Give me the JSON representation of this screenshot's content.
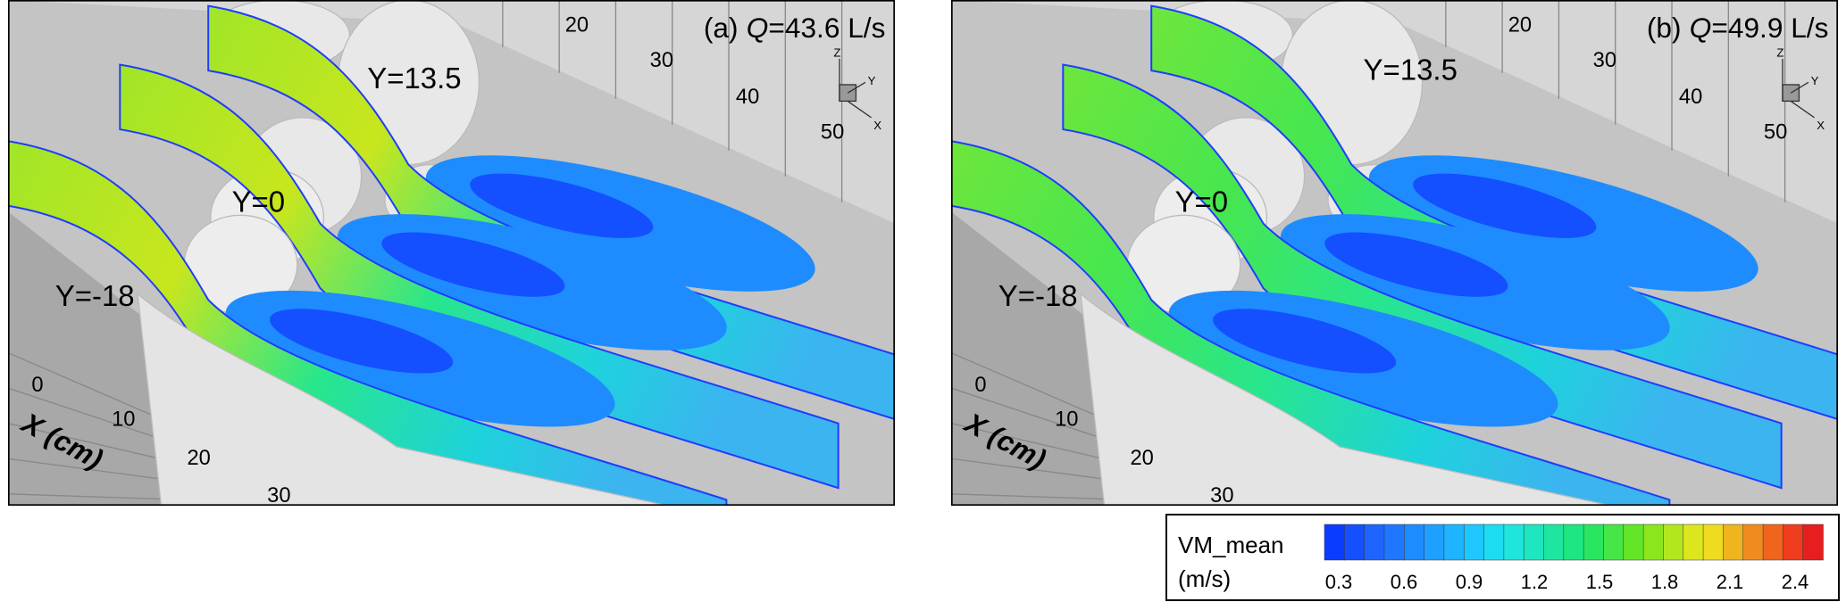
{
  "panels": [
    {
      "label": "(a)",
      "symbol": "Q",
      "value": "=43.6 L/s",
      "planes": [
        "Y=13.5",
        "Y=0",
        "Y=-18"
      ],
      "x_axis_label": "X (cm)",
      "x_ticks": [
        "0",
        "10",
        "20",
        "30"
      ],
      "back_ticks": [
        "20",
        "30",
        "40",
        "50"
      ],
      "triad": [
        "Z",
        "Y",
        "X"
      ]
    },
    {
      "label": "(b)",
      "symbol": "Q",
      "value": "=49.9 L/s",
      "planes": [
        "Y=13.5",
        "Y=0",
        "Y=-18"
      ],
      "x_axis_label": "X (cm)",
      "x_ticks": [
        "0",
        "10",
        "20",
        "30"
      ],
      "back_ticks": [
        "20",
        "30",
        "40",
        "50"
      ],
      "triad": [
        "Z",
        "Y",
        "X"
      ]
    }
  ],
  "colorbar": {
    "title": "VM_mean",
    "unit": "(m/s)",
    "ticks": [
      "0.3",
      "0.6",
      "0.9",
      "1.2",
      "1.5",
      "1.8",
      "2.1",
      "2.4"
    ],
    "colors": [
      "#0a3cff",
      "#1450ff",
      "#1e64ff",
      "#1e78ff",
      "#1e8cff",
      "#1ea0ff",
      "#1eb4ff",
      "#1ec8ff",
      "#1edcf0",
      "#1ee6dc",
      "#1ee6c0",
      "#1ee6a0",
      "#1ee680",
      "#28e660",
      "#46e646",
      "#64e628",
      "#8ce61e",
      "#b4e61e",
      "#dce61e",
      "#f0dc1e",
      "#f0b41e",
      "#f08c1e",
      "#f0641e",
      "#f03c1e",
      "#e61e1e"
    ]
  }
}
